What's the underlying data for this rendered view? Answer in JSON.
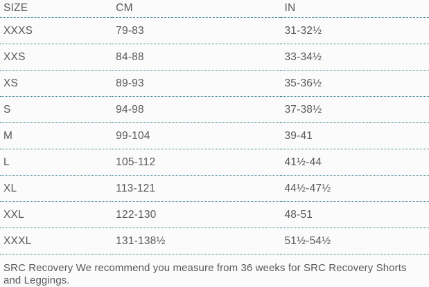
{
  "table": {
    "columns": [
      {
        "key": "size",
        "label": "SIZE"
      },
      {
        "key": "cm",
        "label": "CM"
      },
      {
        "key": "in",
        "label": "IN"
      }
    ],
    "rows": [
      {
        "size": "XXXS",
        "cm": "79-83",
        "in": "31-32½"
      },
      {
        "size": "XXS",
        "cm": "84-88",
        "in": "33-34½"
      },
      {
        "size": "XS",
        "cm": "89-93",
        "in": "35-36½"
      },
      {
        "size": "S",
        "cm": "94-98",
        "in": "37-38½"
      },
      {
        "size": "M",
        "cm": "99-104",
        "in": "39-41"
      },
      {
        "size": "L",
        "cm": "105-112",
        "in": "41½-44"
      },
      {
        "size": "XL",
        "cm": "113-121",
        "in": "44½-47½"
      },
      {
        "size": "XXL",
        "cm": "122-130",
        "in": "48-51"
      },
      {
        "size": "XXXL",
        "cm": "131-138½",
        "in": "51½-54½"
      }
    ]
  },
  "footer": {
    "note": "SRC Recovery We recommend you measure from 36 weeks for SRC Recovery Shorts and Leggings."
  },
  "colors": {
    "divider": "#337f8b",
    "text": "#58585a",
    "background": "#fbfbfb"
  }
}
